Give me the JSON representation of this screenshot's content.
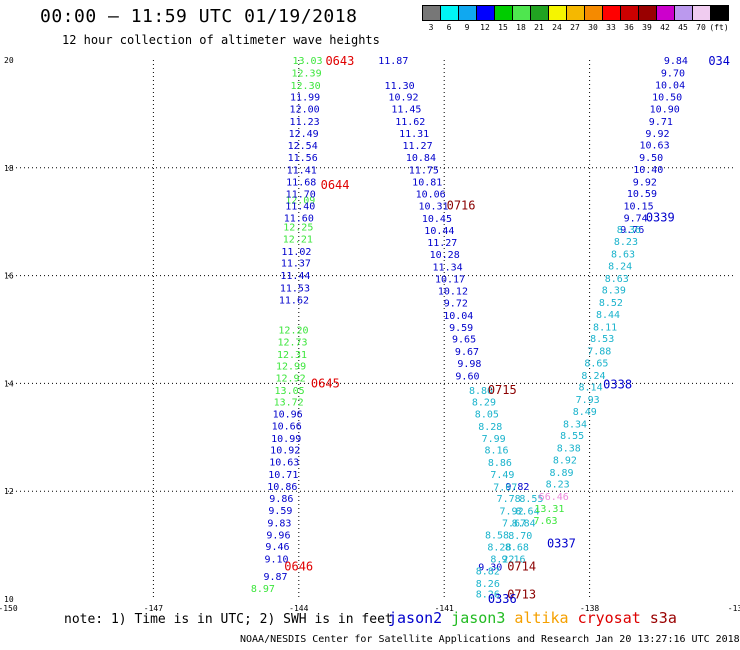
{
  "title": "00:00 – 11:59 UTC 01/19/2018",
  "subtitle": "12 hour collection of altimeter wave heights",
  "scale": {
    "colors": [
      "#777777",
      "#00f5f5",
      "#10a8f0",
      "#0000ff",
      "#00cc00",
      "#4fe64f",
      "#21a321",
      "#f5f500",
      "#f5b800",
      "#f58a00",
      "#ff0000",
      "#cc0000",
      "#990000",
      "#cc00cc",
      "#bb99ee",
      "#f0ccf0",
      "#000000"
    ],
    "labels": [
      "3",
      "6",
      "9",
      "12",
      "15",
      "18",
      "21",
      "24",
      "27",
      "30",
      "33",
      "36",
      "39",
      "42",
      "45",
      "70",
      "(ft)"
    ]
  },
  "axes": {
    "lat_ticks": [
      "20",
      "18",
      "16",
      "14",
      "12",
      "10"
    ],
    "lon_ticks": [
      "-150",
      "-147",
      "-144",
      "-141",
      "-138",
      "-13"
    ]
  },
  "chart_data": {
    "type": "scatter",
    "description_units": "longitude (deg E) vs latitude (deg N); value = significant wave height (ft)",
    "xlim": [
      -150,
      -135
    ],
    "ylim": [
      10,
      20
    ],
    "grid": true,
    "series": [
      {
        "name": "jason3",
        "color": "#3ce63c",
        "points": [
          [
            -143.82,
            20.0,
            "13.03"
          ],
          [
            -143.84,
            19.77,
            "12.39"
          ],
          [
            -143.86,
            19.54,
            "12.30"
          ],
          [
            -143.97,
            17.41,
            "12.09"
          ],
          [
            -144.01,
            16.91,
            "12.25"
          ],
          [
            -144.02,
            16.69,
            "12.21"
          ],
          [
            -144.11,
            15.0,
            "12.20"
          ],
          [
            -144.13,
            14.78,
            "12.73"
          ],
          [
            -144.14,
            14.55,
            "12.31"
          ],
          [
            -144.16,
            14.33,
            "12.99"
          ],
          [
            -144.17,
            14.11,
            "12.92"
          ],
          [
            -144.19,
            13.88,
            "13.05"
          ],
          [
            -144.21,
            13.66,
            "13.72"
          ],
          [
            -144.74,
            10.2,
            "8.97"
          ]
        ]
      },
      {
        "name": "jason2",
        "color": "#0000cc",
        "points": [
          [
            -143.87,
            19.32,
            "11.99"
          ],
          [
            -143.88,
            19.1,
            "12.00"
          ],
          [
            -143.88,
            18.87,
            "11.23"
          ],
          [
            -143.9,
            18.65,
            "12.49"
          ],
          [
            -143.92,
            18.42,
            "12.54"
          ],
          [
            -143.92,
            18.2,
            "11.56"
          ],
          [
            -143.94,
            17.97,
            "11.41"
          ],
          [
            -143.95,
            17.75,
            "11.68"
          ],
          [
            -143.96,
            17.52,
            "11.70"
          ],
          [
            -143.97,
            17.3,
            "11.40"
          ],
          [
            -144.0,
            17.08,
            "11.60"
          ],
          [
            -144.05,
            16.46,
            "11.02"
          ],
          [
            -144.06,
            16.24,
            "11.37"
          ],
          [
            -144.07,
            16.01,
            "11.44"
          ],
          [
            -144.08,
            15.78,
            "11.53"
          ],
          [
            -144.1,
            15.56,
            "11.62"
          ],
          [
            -144.23,
            13.44,
            "10.96"
          ],
          [
            -144.25,
            13.22,
            "10.66"
          ],
          [
            -144.26,
            12.99,
            "10.99"
          ],
          [
            -144.28,
            12.77,
            "10.92"
          ],
          [
            -144.3,
            12.55,
            "10.63"
          ],
          [
            -144.32,
            12.32,
            "10.71"
          ],
          [
            -144.34,
            12.1,
            "10.86"
          ],
          [
            -144.36,
            11.87,
            "9.86"
          ],
          [
            -144.38,
            11.65,
            "9.59"
          ],
          [
            -144.4,
            11.42,
            "9.83"
          ],
          [
            -144.42,
            11.2,
            "9.96"
          ],
          [
            -144.44,
            10.98,
            "9.46"
          ],
          [
            -144.46,
            10.75,
            "9.10"
          ],
          [
            -144.48,
            10.43,
            "9.87"
          ],
          [
            -142.05,
            20.0,
            "11.87"
          ],
          [
            -141.92,
            19.54,
            "11.30"
          ],
          [
            -141.84,
            19.32,
            "10.92"
          ],
          [
            -141.78,
            19.1,
            "11.45"
          ],
          [
            -141.7,
            18.87,
            "11.62"
          ],
          [
            -141.62,
            18.65,
            "11.31"
          ],
          [
            -141.55,
            18.42,
            "11.27"
          ],
          [
            -141.48,
            18.2,
            "10.84"
          ],
          [
            -141.42,
            17.97,
            "11.75"
          ],
          [
            -141.35,
            17.75,
            "10.81"
          ],
          [
            -141.28,
            17.52,
            "10.06"
          ],
          [
            -141.22,
            17.3,
            "10.31"
          ],
          [
            -141.15,
            17.07,
            "10.45"
          ],
          [
            -141.1,
            16.85,
            "10.44"
          ],
          [
            -141.04,
            16.62,
            "11.27"
          ],
          [
            -140.99,
            16.4,
            "10.28"
          ],
          [
            -140.93,
            16.17,
            "11.34"
          ],
          [
            -140.88,
            15.95,
            "10.17"
          ],
          [
            -140.82,
            15.72,
            "10.12"
          ],
          [
            -140.76,
            15.5,
            "9.72"
          ],
          [
            -140.71,
            15.27,
            "10.04"
          ],
          [
            -140.65,
            15.05,
            "9.59"
          ],
          [
            -140.59,
            14.83,
            "9.65"
          ],
          [
            -140.53,
            14.6,
            "9.67"
          ],
          [
            -140.48,
            14.38,
            "9.98"
          ],
          [
            -140.52,
            14.15,
            "9.60"
          ],
          [
            -136.22,
            20.0,
            "9.84"
          ],
          [
            -136.28,
            19.77,
            "9.70"
          ],
          [
            -136.34,
            19.55,
            "10.04"
          ],
          [
            -136.4,
            19.32,
            "10.50"
          ],
          [
            -136.45,
            19.1,
            "10.90"
          ],
          [
            -136.53,
            18.87,
            "9.71"
          ],
          [
            -136.6,
            18.65,
            "9.92"
          ],
          [
            -136.66,
            18.43,
            "10.63"
          ],
          [
            -136.73,
            18.2,
            "9.50"
          ],
          [
            -136.79,
            17.98,
            "10.40"
          ],
          [
            -136.86,
            17.75,
            "9.92"
          ],
          [
            -136.92,
            17.53,
            "10.59"
          ],
          [
            -136.99,
            17.3,
            "10.15"
          ],
          [
            -137.05,
            17.08,
            "9.74"
          ],
          [
            -137.12,
            16.86,
            "9.76"
          ],
          [
            -139.49,
            12.1,
            "9.82"
          ],
          [
            -140.05,
            10.6,
            "9.30"
          ]
        ]
      },
      {
        "name": "cryosat",
        "color": "#1ab3cc",
        "points": [
          [
            -140.24,
            13.88,
            "8.80"
          ],
          [
            -140.18,
            13.66,
            "8.29"
          ],
          [
            -140.12,
            13.44,
            "8.05"
          ],
          [
            -140.05,
            13.21,
            "8.28"
          ],
          [
            -139.98,
            12.99,
            "7.99"
          ],
          [
            -139.92,
            12.77,
            "8.16"
          ],
          [
            -139.85,
            12.54,
            "8.86"
          ],
          [
            -139.8,
            12.32,
            "7.49"
          ],
          [
            -139.74,
            12.09,
            "7.67"
          ],
          [
            -139.67,
            11.87,
            "7.78"
          ],
          [
            -139.61,
            11.64,
            "7.92"
          ],
          [
            -139.56,
            11.42,
            "7.67"
          ],
          [
            -139.91,
            11.2,
            "8.58"
          ],
          [
            -139.86,
            10.97,
            "8.28"
          ],
          [
            -139.8,
            10.75,
            "8.22"
          ],
          [
            -140.1,
            10.53,
            "8.82"
          ],
          [
            -140.1,
            10.3,
            "8.26"
          ],
          [
            -140.1,
            10.1,
            "8.26"
          ],
          [
            -137.19,
            16.86,
            "8.36"
          ],
          [
            -137.25,
            16.64,
            "8.23"
          ],
          [
            -137.31,
            16.41,
            "8.63"
          ],
          [
            -137.37,
            16.19,
            "8.24"
          ],
          [
            -137.44,
            15.96,
            "8.63"
          ],
          [
            -137.5,
            15.74,
            "8.39"
          ],
          [
            -137.56,
            15.51,
            "8.52"
          ],
          [
            -137.62,
            15.29,
            "8.44"
          ],
          [
            -137.68,
            15.06,
            "8.11"
          ],
          [
            -137.74,
            14.84,
            "8.53"
          ],
          [
            -137.8,
            14.61,
            "7.88"
          ],
          [
            -137.86,
            14.39,
            "8.65"
          ],
          [
            -137.92,
            14.16,
            "8.24"
          ],
          [
            -137.98,
            13.94,
            "8.14"
          ],
          [
            -138.04,
            13.71,
            "7.93"
          ],
          [
            -138.1,
            13.49,
            "8.49"
          ],
          [
            -138.3,
            13.26,
            "8.34"
          ],
          [
            -138.36,
            13.04,
            "8.55"
          ],
          [
            -138.43,
            12.81,
            "8.38"
          ],
          [
            -138.51,
            12.59,
            "8.92"
          ],
          [
            -138.58,
            12.36,
            "8.89"
          ],
          [
            -138.66,
            12.14,
            "8.23"
          ],
          [
            -139.2,
            11.87,
            "8.55"
          ],
          [
            -139.28,
            11.64,
            "8.64"
          ],
          [
            -139.36,
            11.42,
            "8.84"
          ],
          [
            -139.43,
            11.19,
            "8.70"
          ],
          [
            -139.5,
            10.97,
            "8.68"
          ],
          [
            -139.57,
            10.75,
            "9.16"
          ]
        ]
      },
      {
        "name": "altika",
        "color": "#ee88dd",
        "points": [
          [
            -138.74,
            11.91,
            "66.46"
          ]
        ]
      },
      {
        "name": "jason3-mid",
        "color": "#3ce63c",
        "points": [
          [
            -138.83,
            11.69,
            "13.31"
          ],
          [
            -138.91,
            11.47,
            "7.63"
          ]
        ]
      }
    ],
    "pass_times": [
      {
        "label": "0643",
        "color": "#e00000",
        "lon": -143.45,
        "lat": 19.98
      },
      {
        "label": "0644",
        "color": "#e00000",
        "lon": -143.55,
        "lat": 17.68
      },
      {
        "label": "0645",
        "color": "#e00000",
        "lon": -143.75,
        "lat": 14.0
      },
      {
        "label": "0646",
        "color": "#e00000",
        "lon": -144.3,
        "lat": 10.6
      },
      {
        "label": "0716",
        "color": "#8b0000",
        "lon": -140.95,
        "lat": 17.3
      },
      {
        "label": "0715",
        "color": "#8b0000",
        "lon": -140.1,
        "lat": 13.88
      },
      {
        "label": "0714",
        "color": "#8b0000",
        "lon": -139.7,
        "lat": 10.6
      },
      {
        "label": "0713",
        "color": "#8b0000",
        "lon": -139.7,
        "lat": 10.08
      },
      {
        "label": "034",
        "color": "#0000cc",
        "lon": -135.55,
        "lat": 19.98
      },
      {
        "label": "0339",
        "color": "#0000cc",
        "lon": -136.84,
        "lat": 17.08
      },
      {
        "label": "0338",
        "color": "#0000cc",
        "lon": -137.72,
        "lat": 13.98
      },
      {
        "label": "0337",
        "color": "#0000cc",
        "lon": -138.88,
        "lat": 11.03
      },
      {
        "label": "0336",
        "color": "#0000cc",
        "lon": -140.1,
        "lat": 10.0
      }
    ]
  },
  "note": "note: 1) Time is in UTC; 2) SWH is in feet",
  "legend": [
    {
      "label": "jason2",
      "color": "#0000cc"
    },
    {
      "label": "jason3",
      "color": "#22bb22"
    },
    {
      "label": "altika",
      "color": "#f5a000"
    },
    {
      "label": "cryosat",
      "color": "#dd0000"
    },
    {
      "label": "s3a",
      "color": "#990000"
    }
  ],
  "footer": "NOAA/NESDIS Center for Satellite Applications and Research   Jan 20 13:27:16 UTC 2018"
}
